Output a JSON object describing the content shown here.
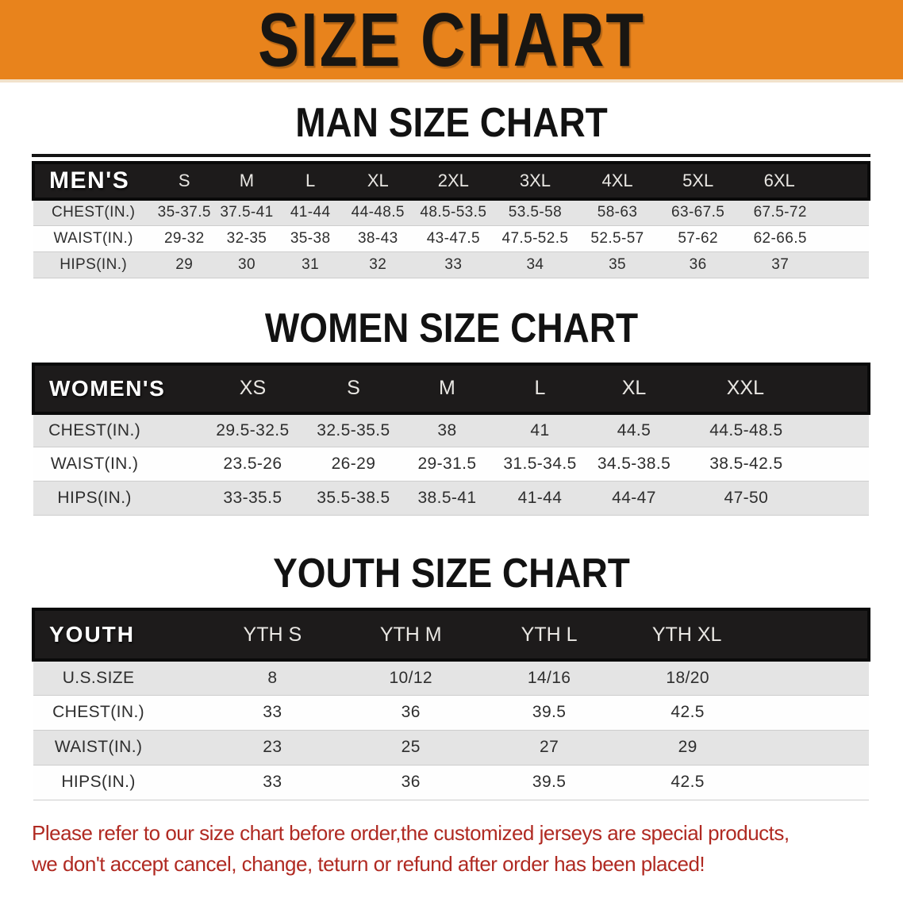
{
  "banner": {
    "title": "SIZE CHART",
    "bg_color": "#E8831C",
    "text_color": "#191612"
  },
  "colors": {
    "table_header_bg": "#1D1B1B",
    "row_stripe_gray": "#E4E4E4",
    "row_white": "#FEFEFE",
    "disclaimer_red": "#B02A22"
  },
  "sections": [
    {
      "heading": "MAN SIZE CHART",
      "table": {
        "header_label": "MEN'S",
        "columns": [
          "S",
          "M",
          "L",
          "XL",
          "2XL",
          "3XL",
          "4XL",
          "5XL",
          "6XL"
        ],
        "rows": [
          {
            "label": "CHEST(IN.)",
            "values": [
              "35-37.5",
              "37.5-41",
              "41-44",
              "44-48.5",
              "48.5-53.5",
              "53.5-58",
              "58-63",
              "63-67.5",
              "67.5-72"
            ]
          },
          {
            "label": "WAIST(IN.)",
            "values": [
              "29-32",
              "32-35",
              "35-38",
              "38-43",
              "43-47.5",
              "47.5-52.5",
              "52.5-57",
              "57-62",
              "62-66.5"
            ]
          },
          {
            "label": "HIPS(IN.)",
            "values": [
              "29",
              "30",
              "31",
              "32",
              "33",
              "34",
              "35",
              "36",
              "37"
            ]
          }
        ]
      }
    },
    {
      "heading": "WOMEN SIZE CHART",
      "table": {
        "header_label": "WOMEN'S",
        "columns": [
          "XS",
          "S",
          "M",
          "L",
          "XL",
          "XXL"
        ],
        "rows": [
          {
            "label": "CHEST(IN.)",
            "values": [
              "29.5-32.5",
              "32.5-35.5",
              "38",
              "41",
              "44.5",
              "44.5-48.5"
            ]
          },
          {
            "label": "WAIST(IN.)",
            "values": [
              "23.5-26",
              "26-29",
              "29-31.5",
              "31.5-34.5",
              "34.5-38.5",
              "38.5-42.5"
            ]
          },
          {
            "label": "HIPS(IN.)",
            "values": [
              "33-35.5",
              "35.5-38.5",
              "38.5-41",
              "41-44",
              "44-47",
              "47-50"
            ]
          }
        ]
      }
    },
    {
      "heading": "YOUTH SIZE CHART",
      "table": {
        "header_label": "YOUTH",
        "columns": [
          "YTH S",
          "YTH M",
          "YTH L",
          "YTH XL"
        ],
        "rows": [
          {
            "label": "U.S.SIZE",
            "values": [
              "8",
              "10/12",
              "14/16",
              "18/20"
            ]
          },
          {
            "label": "CHEST(IN.)",
            "values": [
              "33",
              "36",
              "39.5",
              "42.5"
            ]
          },
          {
            "label": "WAIST(IN.)",
            "values": [
              "23",
              "25",
              "27",
              "29"
            ]
          },
          {
            "label": "HIPS(IN.)",
            "values": [
              "33",
              "36",
              "39.5",
              "42.5"
            ]
          }
        ]
      }
    }
  ],
  "footer": {
    "line1": "Please refer to our size chart before order,the customized jerseys are special products,",
    "line2": "we don't accept cancel, change, teturn or refund after order has been placed!"
  }
}
